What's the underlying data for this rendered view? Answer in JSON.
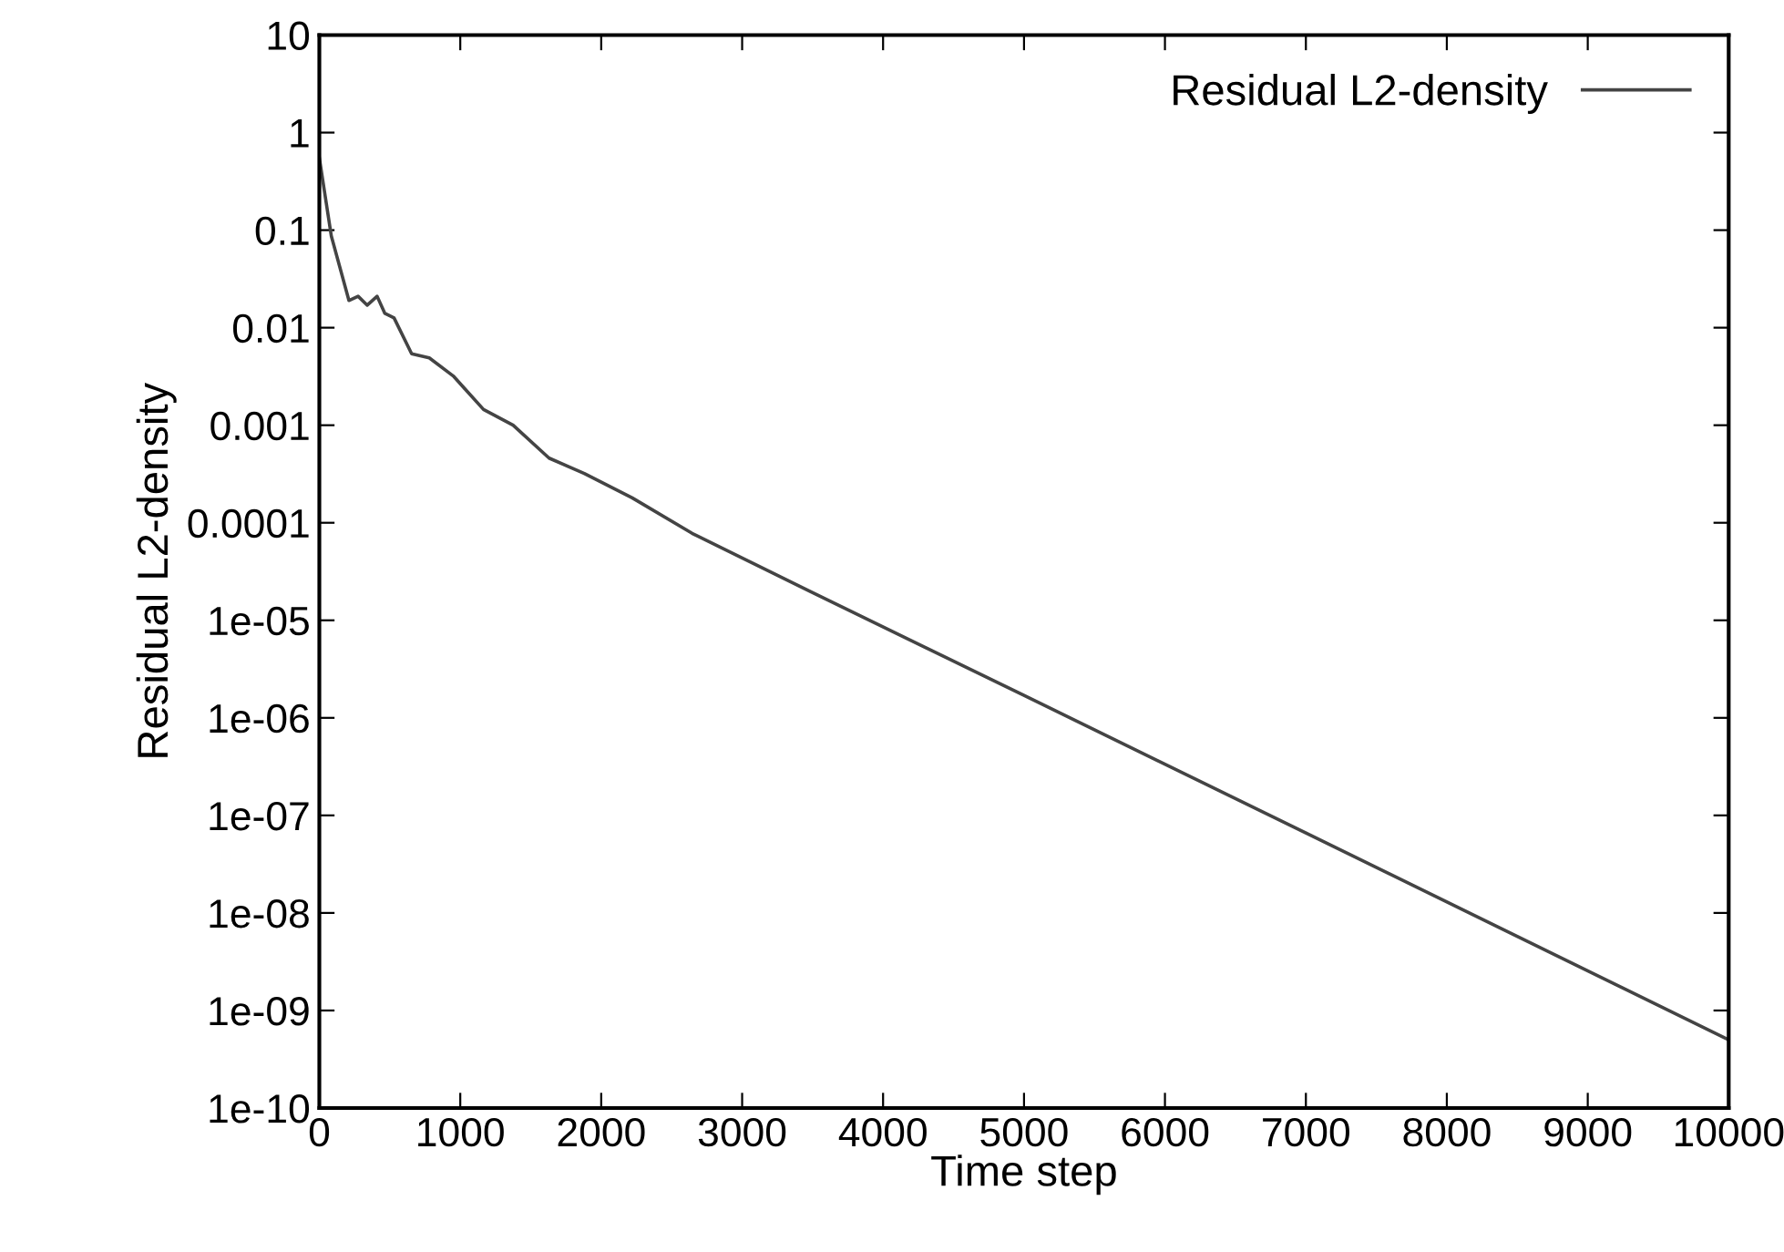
{
  "chart_data": {
    "type": "line",
    "xlabel": "Time step",
    "ylabel": "Residual L2-density",
    "log": "y",
    "legend": "top right",
    "grid": false,
    "xlim": [
      0,
      10000
    ],
    "xticks": [
      0,
      1000,
      2000,
      3000,
      4000,
      5000,
      6000,
      7000,
      8000,
      9000,
      10000
    ],
    "ylim": [
      1e-10,
      10
    ],
    "yticks": [
      {
        "value": 1e-10,
        "label": "1e-10"
      },
      {
        "value": 1e-09,
        "label": "1e-09"
      },
      {
        "value": 1e-08,
        "label": "1e-08"
      },
      {
        "value": 1e-07,
        "label": "1e-07"
      },
      {
        "value": 1e-06,
        "label": "1e-06"
      },
      {
        "value": 1e-05,
        "label": "1e-05"
      },
      {
        "value": 0.0001,
        "label": "0.0001"
      },
      {
        "value": 0.001,
        "label": "0.001"
      },
      {
        "value": 0.01,
        "label": "0.01"
      },
      {
        "value": 0.1,
        "label": "0.1"
      },
      {
        "value": 1,
        "label": "1"
      },
      {
        "value": 10,
        "label": "10"
      }
    ],
    "x": [
      0,
      85,
      210,
      275,
      340,
      410,
      465,
      530,
      655,
      780,
      950,
      1165,
      1375,
      1630,
      1880,
      2220,
      2645,
      3490,
      5000,
      7000,
      10000
    ],
    "series": [
      {
        "name": "Residual L2-density",
        "color": "#444444",
        "values": [
          0.55,
          0.087,
          0.019,
          0.021,
          0.017,
          0.021,
          0.014,
          0.0126,
          0.0054,
          0.0049,
          0.0032,
          0.00145,
          0.001,
          0.00046,
          0.00032,
          0.00018,
          7.8e-05,
          1.95e-05,
          1.7e-06,
          6.6e-08,
          5e-10
        ]
      }
    ]
  }
}
